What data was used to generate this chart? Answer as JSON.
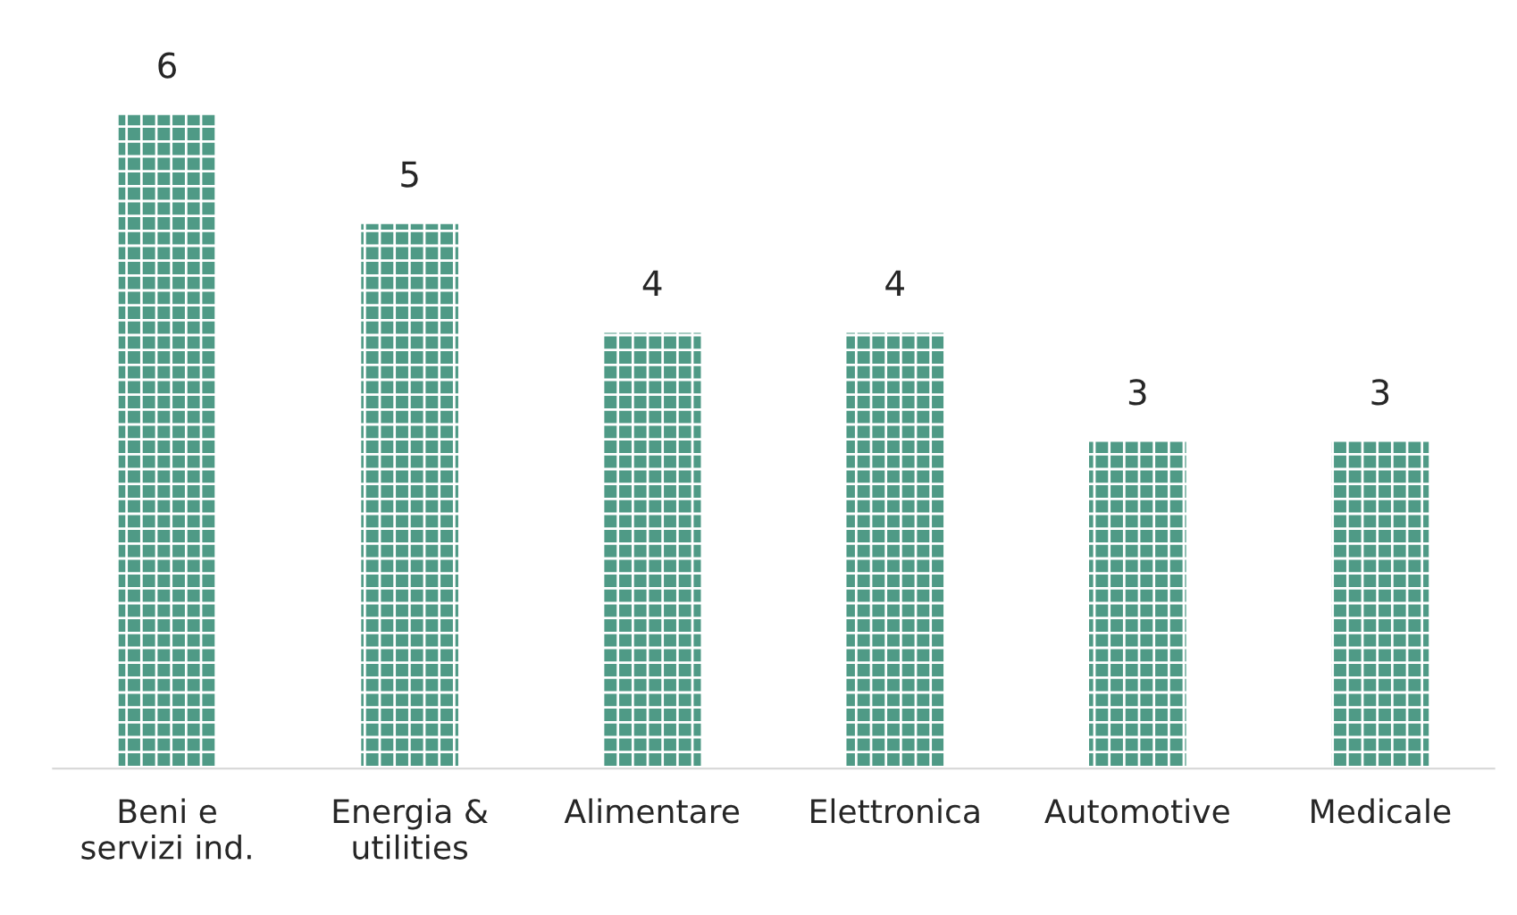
{
  "chart_data": {
    "type": "bar",
    "categories": [
      "Beni e\nservizi ind.",
      "Energia &\nutilities",
      "Alimentare",
      "Elettronica",
      "Automotive",
      "Medicale"
    ],
    "values": [
      6,
      5,
      4,
      4,
      3,
      3
    ],
    "color": "#4f9a86",
    "data_labels": true,
    "grid": false,
    "legend": false
  }
}
